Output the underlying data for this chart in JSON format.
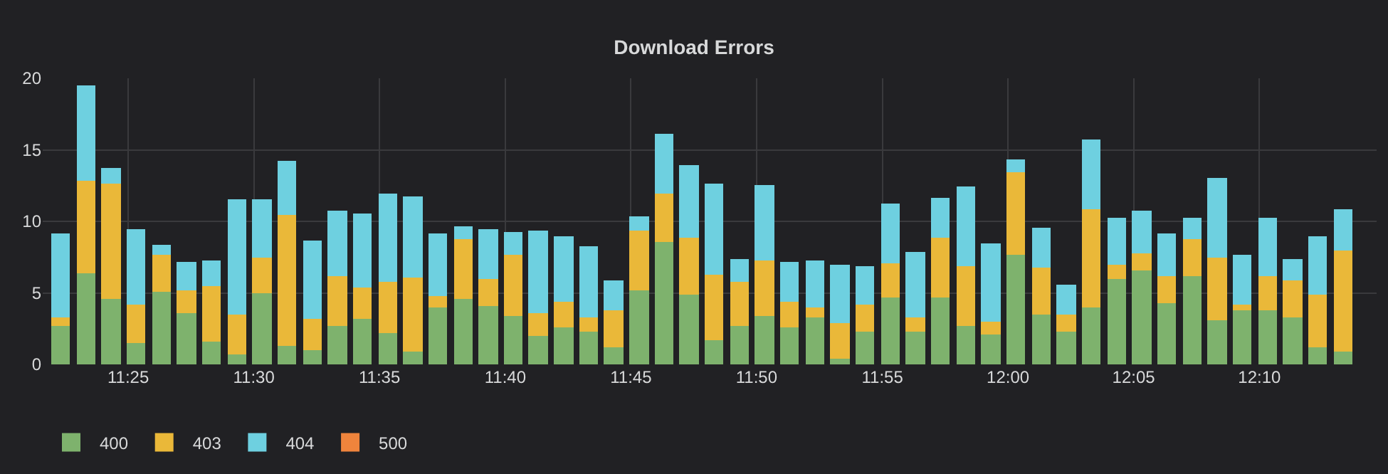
{
  "chart_data": {
    "type": "bar",
    "title": "Download Errors",
    "stacked": true,
    "grid": true,
    "legend": "bottom left",
    "x": [
      11.3725,
      11.3891,
      11.4058,
      11.4225,
      11.4391,
      11.4558,
      11.4725,
      11.4891,
      11.5058,
      11.5225,
      11.5391,
      11.5558,
      11.5725,
      11.5891,
      11.6058,
      11.6225,
      11.6391,
      11.6558,
      11.6725,
      11.6891,
      11.7058,
      11.7225,
      11.7391,
      11.7558,
      11.7725,
      11.7891,
      11.8058,
      11.8225,
      11.8391,
      11.8558,
      11.8725,
      11.8891,
      11.9058,
      11.9225,
      11.9391,
      11.9558,
      11.9725,
      11.9891,
      12.0058,
      12.0225,
      12.0391,
      12.0558,
      12.0725,
      12.0891,
      12.1058,
      12.1225,
      12.1391,
      12.1558,
      12.1725,
      12.1891,
      12.2058,
      12.2225
    ],
    "xlim": [
      11.36,
      12.2444
    ],
    "xticks": [
      {
        "value": 11.4167,
        "label": "11:25"
      },
      {
        "value": 11.5,
        "label": "11:30"
      },
      {
        "value": 11.5833,
        "label": "11:35"
      },
      {
        "value": 11.6667,
        "label": "11:40"
      },
      {
        "value": 11.75,
        "label": "11:45"
      },
      {
        "value": 11.8333,
        "label": "11:50"
      },
      {
        "value": 11.9167,
        "label": "11:55"
      },
      {
        "value": 12,
        "label": "12:00"
      },
      {
        "value": 12.0833,
        "label": "12:05"
      },
      {
        "value": 12.1667,
        "label": "12:10"
      }
    ],
    "ylim": [
      0,
      20
    ],
    "yticks": [
      0,
      5,
      10,
      15,
      20
    ],
    "series": [
      {
        "name": "400",
        "color": "#7eb26d",
        "values": [
          2.7,
          6.4,
          4.6,
          1.5,
          5.1,
          3.6,
          1.6,
          0.7,
          5.0,
          1.3,
          1.0,
          2.7,
          3.2,
          2.2,
          0.9,
          4.0,
          4.6,
          4.1,
          3.4,
          2.0,
          2.6,
          2.3,
          1.2,
          5.2,
          8.6,
          4.9,
          1.7,
          2.7,
          3.4,
          2.6,
          3.3,
          0.4,
          2.3,
          4.7,
          2.3,
          4.7,
          2.7,
          2.1,
          7.7,
          3.5,
          2.3,
          4.0,
          6.0,
          6.6,
          4.3,
          6.2,
          3.1,
          3.8,
          3.8,
          3.3,
          1.2,
          0.9
        ]
      },
      {
        "name": "403",
        "color": "#eab839",
        "values": [
          0.6,
          6.4,
          8.0,
          2.7,
          2.6,
          1.6,
          3.9,
          2.8,
          2.5,
          9.1,
          2.2,
          3.5,
          2.2,
          3.6,
          5.2,
          0.8,
          4.2,
          1.9,
          4.3,
          1.6,
          1.8,
          1.0,
          2.6,
          4.2,
          3.3,
          4.0,
          4.6,
          3.1,
          3.9,
          1.8,
          0.7,
          2.5,
          1.9,
          2.4,
          1.0,
          4.2,
          4.2,
          0.9,
          5.7,
          3.3,
          1.2,
          6.8,
          1.0,
          1.2,
          1.9,
          2.6,
          4.4,
          0.4,
          2.4,
          2.6,
          3.7,
          7.1
        ]
      },
      {
        "name": "404",
        "color": "#6ed0e0",
        "values": [
          5.8,
          6.6,
          1.0,
          5.2,
          0.6,
          1.9,
          1.7,
          7.9,
          3.9,
          3.7,
          5.4,
          4.4,
          5.0,
          6.0,
          5.5,
          4.3,
          0.8,
          3.4,
          1.5,
          5.7,
          4.5,
          4.9,
          2.0,
          0.8,
          4.1,
          4.9,
          6.2,
          1.5,
          5.1,
          2.7,
          3.2,
          4.0,
          2.6,
          4.0,
          4.5,
          2.6,
          5.4,
          5.4,
          0.8,
          2.7,
          2.0,
          4.8,
          3.1,
          2.8,
          2.9,
          1.3,
          5.4,
          3.4,
          3.9,
          1.4,
          4.0,
          2.7
        ]
      },
      {
        "name": "500",
        "color": "#ef843c",
        "values": [
          null,
          null,
          null,
          null,
          null,
          null,
          null,
          null,
          null,
          null,
          null,
          null,
          null,
          null,
          null,
          null,
          null,
          null,
          null,
          null,
          null,
          null,
          null,
          null,
          null,
          null,
          null,
          null,
          null,
          null,
          null,
          null,
          null,
          null,
          null,
          null,
          null,
          null,
          null,
          null,
          null,
          null,
          null,
          null,
          null,
          null,
          null,
          null,
          null,
          null,
          null,
          null
        ]
      }
    ]
  }
}
